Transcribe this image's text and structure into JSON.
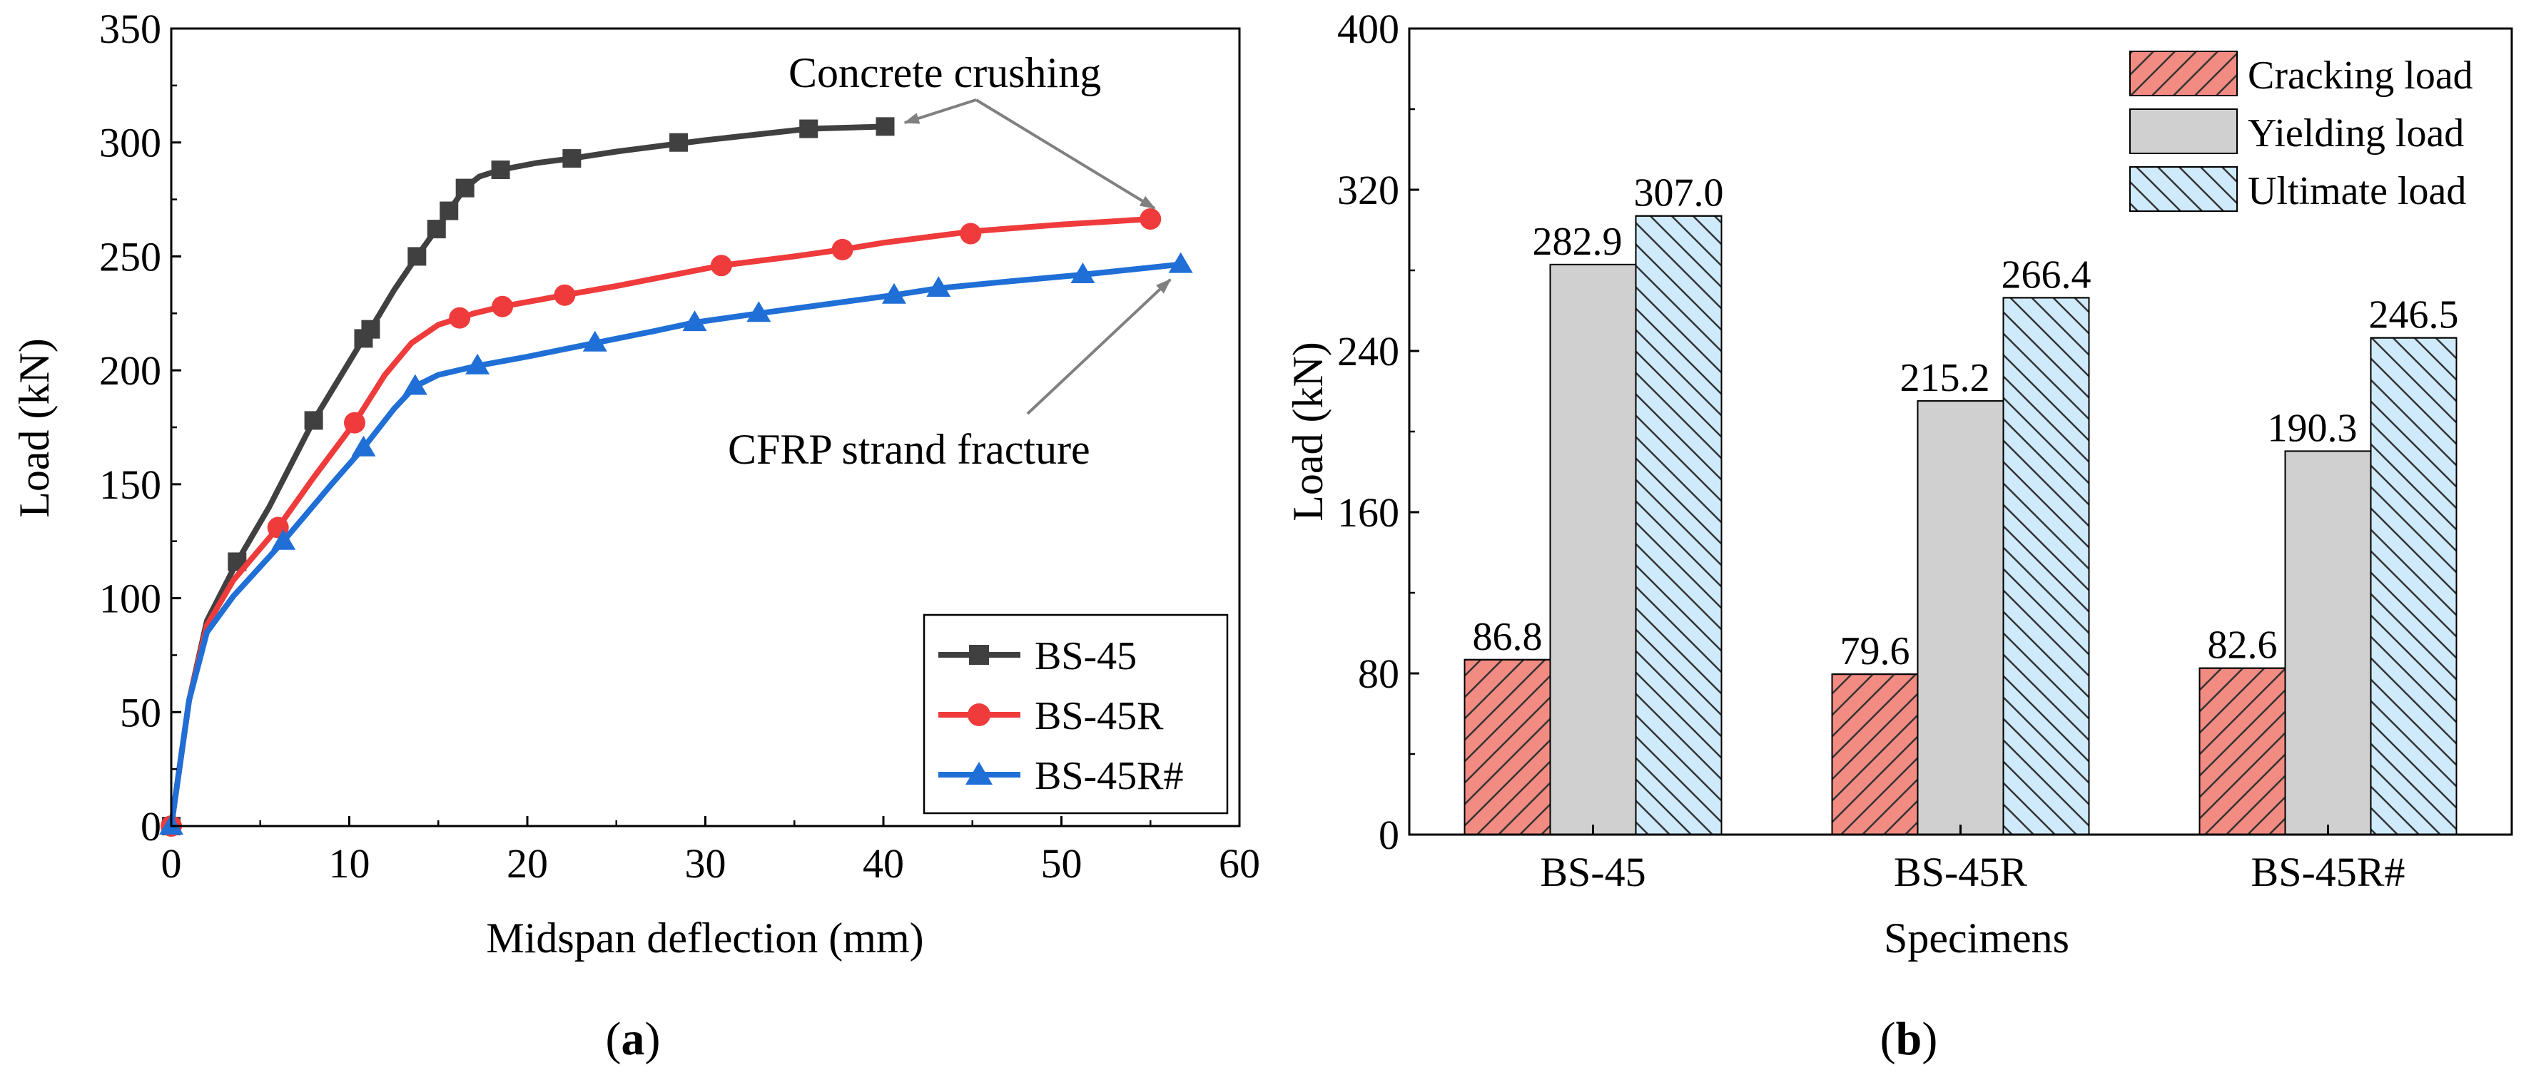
{
  "panel_a": {
    "caption_open": "(",
    "caption_letter": "a",
    "caption_close": ")"
  },
  "panel_b": {
    "caption_open": "(",
    "caption_letter": "b",
    "caption_close": ")"
  },
  "annotations": {
    "concrete": "Concrete crushing",
    "cfrp": "CFRP strand fracture"
  },
  "chart_data": [
    {
      "type": "line",
      "xlabel": "Midspan deflection (mm)",
      "ylabel": "Load (kN)",
      "xlim": [
        0,
        60
      ],
      "ylim": [
        0,
        350
      ],
      "xticks": [
        0,
        10,
        20,
        30,
        40,
        50,
        60
      ],
      "yticks": [
        0,
        50,
        100,
        150,
        200,
        250,
        300,
        350
      ],
      "legend_position": "bottom-right",
      "series": [
        {
          "name": "BS-45",
          "color": "#404040",
          "marker": "square",
          "curve": [
            [
              0,
              0
            ],
            [
              1,
              55
            ],
            [
              2,
              90
            ],
            [
              3.7,
              116
            ],
            [
              5.5,
              140
            ],
            [
              8,
              178
            ],
            [
              10.8,
              214
            ],
            [
              11.2,
              218
            ],
            [
              12.5,
              235
            ],
            [
              13.8,
              250
            ],
            [
              14.9,
              262
            ],
            [
              15.6,
              270
            ],
            [
              16.5,
              280
            ],
            [
              17.3,
              285
            ],
            [
              18.5,
              288
            ],
            [
              20.5,
              291
            ],
            [
              22.5,
              293
            ],
            [
              25,
              296
            ],
            [
              28,
              299
            ],
            [
              30,
              301
            ],
            [
              35.8,
              306
            ],
            [
              40.1,
              307
            ]
          ],
          "markers": [
            [
              0,
              0
            ],
            [
              3.7,
              116
            ],
            [
              8,
              178
            ],
            [
              10.8,
              214
            ],
            [
              11.2,
              218
            ],
            [
              13.8,
              250
            ],
            [
              14.9,
              262
            ],
            [
              15.6,
              270
            ],
            [
              16.5,
              280
            ],
            [
              18.5,
              288
            ],
            [
              22.5,
              293
            ],
            [
              28.5,
              300
            ],
            [
              35.8,
              306
            ],
            [
              40.1,
              307
            ]
          ]
        },
        {
          "name": "BS-45R",
          "color": "#ef3b3b",
          "marker": "circle",
          "curve": [
            [
              0,
              0
            ],
            [
              1,
              55
            ],
            [
              2,
              88
            ],
            [
              3.5,
              108
            ],
            [
              6,
              131
            ],
            [
              8,
              153
            ],
            [
              10.3,
              177
            ],
            [
              12,
              198
            ],
            [
              13.5,
              212
            ],
            [
              15,
              220
            ],
            [
              16.2,
              223
            ],
            [
              17,
              225
            ],
            [
              18.6,
              228
            ],
            [
              20,
              230
            ],
            [
              22.1,
              233
            ],
            [
              25,
              237
            ],
            [
              30.9,
              246
            ],
            [
              35,
              250
            ],
            [
              37.7,
              253
            ],
            [
              40,
              256
            ],
            [
              45,
              261
            ],
            [
              50,
              264
            ],
            [
              55,
              266.4
            ]
          ],
          "markers": [
            [
              0,
              0
            ],
            [
              6,
              131
            ],
            [
              10.3,
              177
            ],
            [
              16.2,
              223
            ],
            [
              18.6,
              228
            ],
            [
              22.1,
              233
            ],
            [
              30.9,
              246
            ],
            [
              37.7,
              253
            ],
            [
              44.9,
              260
            ],
            [
              55,
              266.4
            ]
          ]
        },
        {
          "name": "BS-45R#",
          "color": "#1f6fd6",
          "marker": "triangle",
          "curve": [
            [
              0,
              0
            ],
            [
              1,
              55
            ],
            [
              2,
              85
            ],
            [
              3.5,
              101
            ],
            [
              6.3,
              125
            ],
            [
              9,
              150
            ],
            [
              10.8,
              166
            ],
            [
              12.5,
              183
            ],
            [
              13.7,
              193
            ],
            [
              15,
              198
            ],
            [
              17.2,
              202
            ],
            [
              20,
              206
            ],
            [
              23.8,
              212
            ],
            [
              27,
              217
            ],
            [
              29.4,
              221
            ],
            [
              33,
              225
            ],
            [
              40.6,
              233
            ],
            [
              43.1,
              236
            ],
            [
              47,
              239
            ],
            [
              51.2,
              242
            ],
            [
              56.7,
              246.5
            ]
          ],
          "markers": [
            [
              0,
              0
            ],
            [
              6.3,
              125
            ],
            [
              10.8,
              166
            ],
            [
              13.7,
              193
            ],
            [
              17.2,
              202
            ],
            [
              23.8,
              212
            ],
            [
              29.4,
              221
            ],
            [
              33,
              225
            ],
            [
              40.6,
              233
            ],
            [
              43.1,
              236
            ],
            [
              51.2,
              242
            ],
            [
              56.7,
              246.5
            ]
          ]
        }
      ]
    },
    {
      "type": "bar",
      "xlabel": "Specimens",
      "ylabel": "Load (kN)",
      "ylim": [
        0,
        400
      ],
      "yticks": [
        0,
        80,
        160,
        240,
        320,
        400
      ],
      "categories": [
        "BS-45",
        "BS-45R",
        "BS-45R#"
      ],
      "legend_position": "top-right",
      "series": [
        {
          "name": "Cracking load",
          "color": "#f28b82",
          "hatch": "forward",
          "values": [
            86.8,
            79.6,
            82.6
          ],
          "labels": [
            "86.8",
            "79.6",
            "82.6"
          ]
        },
        {
          "name": "Yielding load",
          "color": "#d0d0d0",
          "hatch": "none",
          "values": [
            282.9,
            215.2,
            190.3
          ],
          "labels": [
            "282.9",
            "215.2",
            "190.3"
          ]
        },
        {
          "name": "Ultimate load",
          "color": "#cfeafb",
          "hatch": "backward",
          "values": [
            307.0,
            266.4,
            246.5
          ],
          "labels": [
            "307.0",
            "266.4",
            "246.5"
          ]
        }
      ]
    }
  ]
}
